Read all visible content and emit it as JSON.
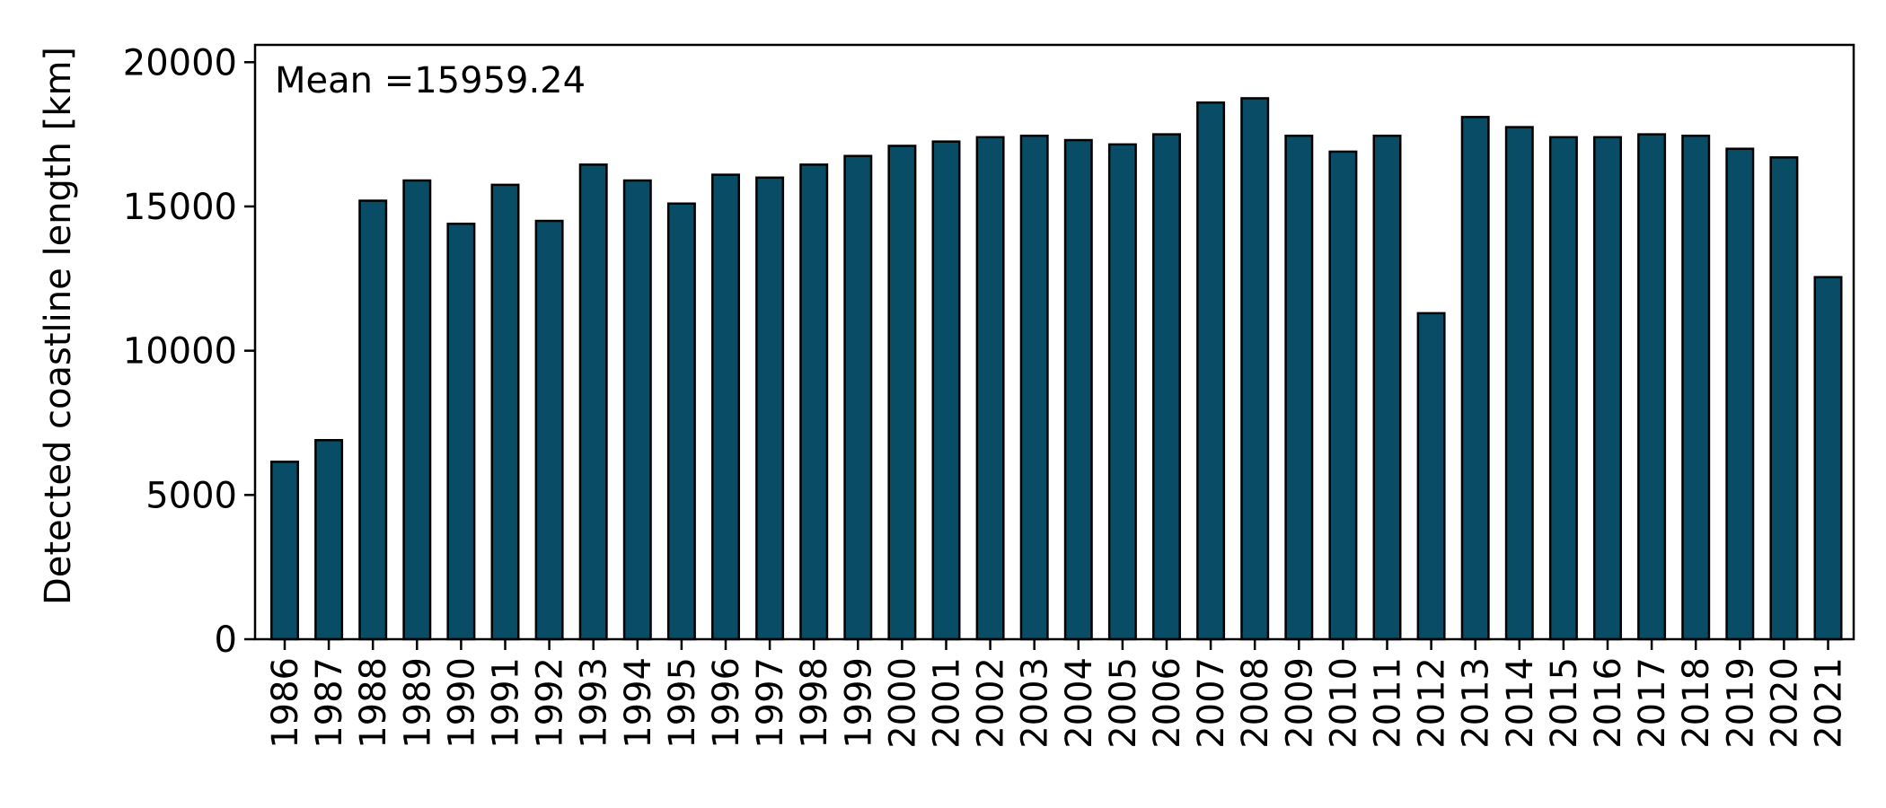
{
  "chart_data": {
    "type": "bar",
    "title": "",
    "xlabel": "",
    "ylabel": "Detected coastline length [km]",
    "ylim": [
      0,
      20600
    ],
    "yticks": [
      0,
      5000,
      10000,
      15000,
      20000
    ],
    "grid": false,
    "legend": "none",
    "annotation": "Mean =15959.24",
    "bar_color": "#084c66",
    "edge_color": "#000000",
    "categories": [
      "1986",
      "1987",
      "1988",
      "1989",
      "1990",
      "1991",
      "1992",
      "1993",
      "1994",
      "1995",
      "1996",
      "1997",
      "1998",
      "1999",
      "2000",
      "2001",
      "2002",
      "2003",
      "2004",
      "2005",
      "2006",
      "2007",
      "2008",
      "2009",
      "2010",
      "2011",
      "2012",
      "2013",
      "2014",
      "2015",
      "2016",
      "2017",
      "2018",
      "2019",
      "2020",
      "2021"
    ],
    "values": [
      6150,
      6900,
      15200,
      15900,
      14400,
      15750,
      14500,
      16450,
      15900,
      15100,
      16100,
      16000,
      16450,
      16750,
      17100,
      17250,
      17400,
      17450,
      17300,
      17150,
      17500,
      18600,
      18750,
      17450,
      16900,
      17450,
      11300,
      18100,
      17750,
      17400,
      17400,
      17500,
      17450,
      17000,
      16700,
      12550
    ]
  }
}
